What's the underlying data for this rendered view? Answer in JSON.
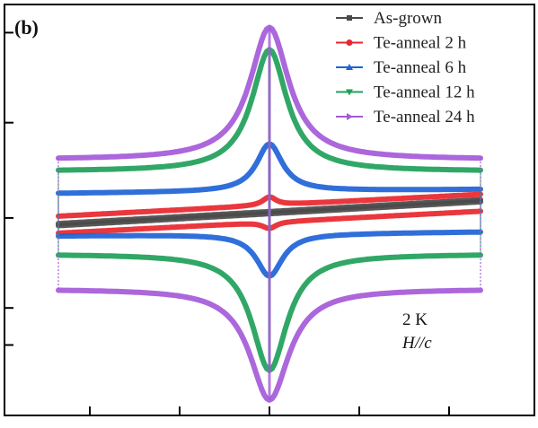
{
  "chart_data": {
    "type": "line",
    "panel_label": "(b)",
    "title": "",
    "xlabel": "",
    "ylabel": "",
    "xlim": [
      -10,
      10
    ],
    "ylim": [
      -1.7,
      1.7
    ],
    "x_ticks": [
      -8,
      -4,
      0,
      4,
      8
    ],
    "y_ticks": [
      -1.25,
      -0.9,
      -0.05,
      0.85,
      1.7
    ],
    "show_tick_labels": false,
    "grid": false,
    "legend_position": "top-right",
    "annotations": [
      {
        "text": "2 K",
        "italic": false
      },
      {
        "text": "H//c",
        "italic": true
      }
    ],
    "series": [
      {
        "name": "As-grown",
        "color": "#4a4a4a",
        "marker": "square",
        "upper": {
          "base": 0.01,
          "slope": 0.012,
          "peak": 0.0,
          "width": 0.0
        },
        "lower": {
          "base": -0.01,
          "slope": 0.012,
          "peak": 0.0,
          "width": 0.0
        }
      },
      {
        "name": "Te-anneal 2 h",
        "color": "#e8262c",
        "marker": "circle",
        "upper": {
          "base": 0.07,
          "slope": 0.011,
          "peak": 0.08,
          "width": 0.35
        },
        "lower": {
          "base": -0.09,
          "slope": 0.011,
          "peak": 0.06,
          "width": 0.35
        }
      },
      {
        "name": "Te-anneal 6 h",
        "color": "#1e63d6",
        "marker": "triangle-up",
        "upper": {
          "base": 0.2,
          "slope": 0.002,
          "peak": 0.45,
          "width": 0.7
        },
        "lower": {
          "base": -0.2,
          "slope": 0.002,
          "peak": 0.4,
          "width": 0.7
        }
      },
      {
        "name": "Te-anneal 12 h",
        "color": "#1fa05a",
        "marker": "triangle-down",
        "upper": {
          "base": 0.39,
          "slope": 0.0,
          "peak": 1.15,
          "width": 0.95
        },
        "lower": {
          "base": -0.39,
          "slope": 0.0,
          "peak": 1.1,
          "width": 0.95
        }
      },
      {
        "name": "Te-anneal 24 h",
        "color": "#a45ad8",
        "marker": "triangle-right",
        "upper": {
          "base": 0.5,
          "slope": 0.0,
          "peak": 1.25,
          "width": 1.05
        },
        "lower": {
          "base": -0.72,
          "slope": 0.0,
          "peak": 1.05,
          "width": 1.05
        }
      }
    ]
  }
}
